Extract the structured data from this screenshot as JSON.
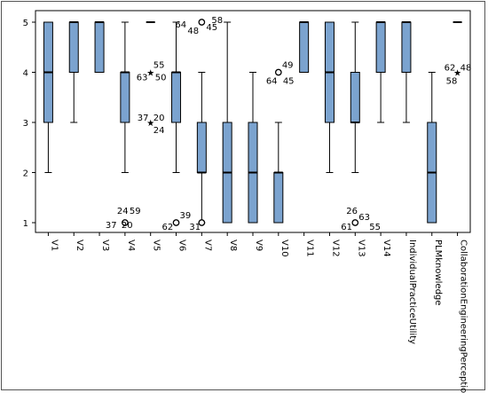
{
  "chart_data": {
    "type": "boxplot",
    "title": "",
    "xlabel": "",
    "ylabel": "",
    "ylim": [
      0.8,
      5.2
    ],
    "yticks": [
      1,
      2,
      3,
      4,
      5
    ],
    "grid": false,
    "legend": "none",
    "box_color": "#7ba3cf",
    "categories": [
      "V1",
      "V2",
      "V3",
      "V4",
      "V5",
      "V6",
      "V7",
      "V8",
      "V9",
      "V10",
      "V11",
      "V12",
      "V13",
      "V14",
      "IndividualPracticeUtility",
      "PLMknowledge",
      "CollaborationEngineeringPerception"
    ],
    "boxes": [
      {
        "category": "V1",
        "min": 2,
        "q1": 3,
        "median": 4,
        "q3": 5,
        "max": 5
      },
      {
        "category": "V2",
        "min": 3,
        "q1": 4,
        "median": 5,
        "q3": 5,
        "max": 5
      },
      {
        "category": "V3",
        "min": 4,
        "q1": 4,
        "median": 5,
        "q3": 5,
        "max": 5
      },
      {
        "category": "V4",
        "min": 2,
        "q1": 3,
        "median": 4,
        "q3": 4,
        "max": 5
      },
      {
        "category": "V5",
        "min": 5,
        "q1": 5,
        "median": 5,
        "q3": 5,
        "max": 5
      },
      {
        "category": "V6",
        "min": 2,
        "q1": 3,
        "median": 4,
        "q3": 4,
        "max": 5
      },
      {
        "category": "V7",
        "min": 1,
        "q1": 2,
        "median": 2,
        "q3": 3,
        "max": 4
      },
      {
        "category": "V8",
        "min": 1,
        "q1": 1,
        "median": 2,
        "q3": 3,
        "max": 5
      },
      {
        "category": "V9",
        "min": 1,
        "q1": 1,
        "median": 2,
        "q3": 3,
        "max": 4
      },
      {
        "category": "V10",
        "min": 1,
        "q1": 1,
        "median": 2,
        "q3": 2,
        "max": 3
      },
      {
        "category": "V11",
        "min": 4,
        "q1": 4,
        "median": 5,
        "q3": 5,
        "max": 5
      },
      {
        "category": "V12",
        "min": 2,
        "q1": 3,
        "median": 4,
        "q3": 5,
        "max": 5
      },
      {
        "category": "V13",
        "min": 2,
        "q1": 3,
        "median": 3,
        "q3": 4,
        "max": 5
      },
      {
        "category": "V14",
        "min": 3,
        "q1": 4,
        "median": 5,
        "q3": 5,
        "max": 5
      },
      {
        "category": "IndividualPracticeUtility",
        "min": 3,
        "q1": 4,
        "median": 5,
        "q3": 5,
        "max": 5
      },
      {
        "category": "PLMknowledge",
        "min": 1,
        "q1": 1,
        "median": 2,
        "q3": 3,
        "max": 4
      },
      {
        "category": "CollaborationEngineeringPerception",
        "min": 5,
        "q1": 5,
        "median": 5,
        "q3": 5,
        "max": 5
      }
    ],
    "outliers": [
      {
        "category": "V4",
        "value": 1,
        "marker": "circle",
        "labels": [
          "24",
          "59",
          "37",
          "20"
        ]
      },
      {
        "category": "V5",
        "value": 4,
        "marker": "star",
        "labels": [
          "55",
          "63",
          "50"
        ]
      },
      {
        "category": "V5",
        "value": 3,
        "marker": "star",
        "labels": [
          "37",
          "20",
          "24"
        ]
      },
      {
        "category": "V6",
        "value": 1,
        "marker": "circle",
        "labels": [
          "39",
          "62"
        ]
      },
      {
        "category": "V7",
        "value": 5,
        "marker": "circle",
        "labels": [
          "64",
          "58",
          "48",
          "45"
        ]
      },
      {
        "category": "V7",
        "value": 1,
        "marker": "circle",
        "labels": [
          "31"
        ]
      },
      {
        "category": "V10",
        "value": 4,
        "marker": "circle",
        "labels": [
          "49",
          "64",
          "45"
        ]
      },
      {
        "category": "V13",
        "value": 1,
        "marker": "circle",
        "labels": [
          "26",
          "63",
          "61",
          "55"
        ]
      },
      {
        "category": "CollaborationEngineeringPerception",
        "value": 4,
        "marker": "star",
        "labels": [
          "62",
          "48",
          "58"
        ]
      }
    ]
  }
}
